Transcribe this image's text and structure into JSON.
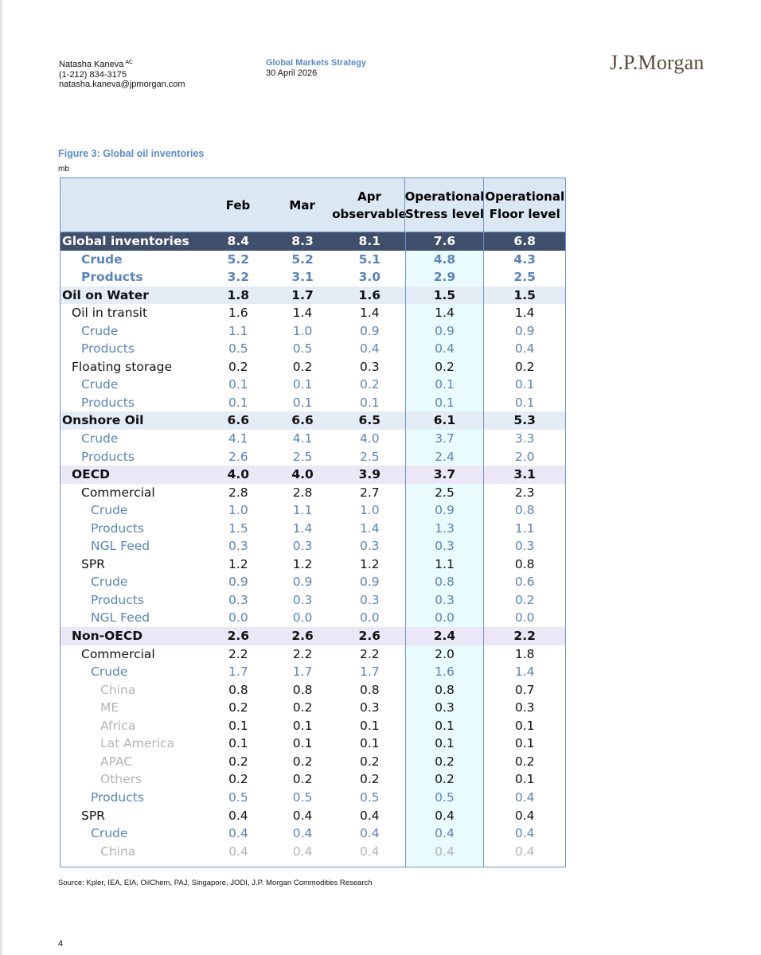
{
  "header": {
    "author_name": "Natasha Kaneva",
    "author_sup": "AC",
    "author_phone": "(1-212) 834-3175",
    "author_email": "natasha.kaneva@jpmorgan.com",
    "strategy_title": "Global Markets Strategy",
    "strategy_date": "30 April 2026",
    "logo_text": "J.P.Morgan"
  },
  "figure": {
    "title": "Figure 3: Global oil inventories",
    "unit": "mb"
  },
  "table": {
    "columns": [
      {
        "line1": "",
        "line2": ""
      },
      {
        "line1": "Feb",
        "line2": ""
      },
      {
        "line1": "Mar",
        "line2": ""
      },
      {
        "line1": "Apr",
        "line2": "observable"
      },
      {
        "line1": "Operational",
        "line2": "Stress level"
      },
      {
        "line1": "Operational",
        "line2": "Floor level"
      }
    ],
    "rows": [
      {
        "label": "Global inventories",
        "values": [
          "8.4",
          "8.3",
          "8.1",
          "7.6",
          "6.8"
        ],
        "indent": 0,
        "tone": "white",
        "bold": true,
        "shade": "global"
      },
      {
        "label": "Crude",
        "values": [
          "5.2",
          "5.2",
          "5.1",
          "4.8",
          "4.3"
        ],
        "indent": 2,
        "tone": "blue",
        "bold": true,
        "shade": ""
      },
      {
        "label": "Products",
        "values": [
          "3.2",
          "3.1",
          "3.0",
          "2.9",
          "2.5"
        ],
        "indent": 2,
        "tone": "blue",
        "bold": true,
        "shade": ""
      },
      {
        "label": "Oil on Water",
        "values": [
          "1.8",
          "1.7",
          "1.6",
          "1.5",
          "1.5"
        ],
        "indent": 0,
        "tone": "black",
        "bold": true,
        "shade": "blue"
      },
      {
        "label": "Oil in transit",
        "values": [
          "1.6",
          "1.4",
          "1.4",
          "1.4",
          "1.4"
        ],
        "indent": 1,
        "tone": "black",
        "bold": false,
        "shade": ""
      },
      {
        "label": "Crude",
        "values": [
          "1.1",
          "1.0",
          "0.9",
          "0.9",
          "0.9"
        ],
        "indent": 2,
        "tone": "blue",
        "bold": false,
        "shade": ""
      },
      {
        "label": "Products",
        "values": [
          "0.5",
          "0.5",
          "0.4",
          "0.4",
          "0.4"
        ],
        "indent": 2,
        "tone": "blue",
        "bold": false,
        "shade": ""
      },
      {
        "label": "Floating storage",
        "values": [
          "0.2",
          "0.2",
          "0.3",
          "0.2",
          "0.2"
        ],
        "indent": 1,
        "tone": "black",
        "bold": false,
        "shade": ""
      },
      {
        "label": "Crude",
        "values": [
          "0.1",
          "0.1",
          "0.2",
          "0.1",
          "0.1"
        ],
        "indent": 2,
        "tone": "blue",
        "bold": false,
        "shade": ""
      },
      {
        "label": "Products",
        "values": [
          "0.1",
          "0.1",
          "0.1",
          "0.1",
          "0.1"
        ],
        "indent": 2,
        "tone": "blue",
        "bold": false,
        "shade": ""
      },
      {
        "label": "Onshore Oil",
        "values": [
          "6.6",
          "6.6",
          "6.5",
          "6.1",
          "5.3"
        ],
        "indent": 0,
        "tone": "black",
        "bold": true,
        "shade": "blue"
      },
      {
        "label": "Crude",
        "values": [
          "4.1",
          "4.1",
          "4.0",
          "3.7",
          "3.3"
        ],
        "indent": 2,
        "tone": "blue",
        "bold": false,
        "shade": ""
      },
      {
        "label": "Products",
        "values": [
          "2.6",
          "2.5",
          "2.5",
          "2.4",
          "2.0"
        ],
        "indent": 2,
        "tone": "blue",
        "bold": false,
        "shade": ""
      },
      {
        "label": "OECD",
        "values": [
          "4.0",
          "4.0",
          "3.9",
          "3.7",
          "3.1"
        ],
        "indent": 1,
        "tone": "black",
        "bold": true,
        "shade": "lav"
      },
      {
        "label": "Commercial",
        "values": [
          "2.8",
          "2.8",
          "2.7",
          "2.5",
          "2.3"
        ],
        "indent": 2,
        "tone": "black",
        "bold": false,
        "shade": ""
      },
      {
        "label": "Crude",
        "values": [
          "1.0",
          "1.1",
          "1.0",
          "0.9",
          "0.8"
        ],
        "indent": 3,
        "tone": "blue",
        "bold": false,
        "shade": ""
      },
      {
        "label": "Products",
        "values": [
          "1.5",
          "1.4",
          "1.4",
          "1.3",
          "1.1"
        ],
        "indent": 3,
        "tone": "blue",
        "bold": false,
        "shade": ""
      },
      {
        "label": "NGL Feed",
        "values": [
          "0.3",
          "0.3",
          "0.3",
          "0.3",
          "0.3"
        ],
        "indent": 3,
        "tone": "blue",
        "bold": false,
        "shade": ""
      },
      {
        "label": "SPR",
        "values": [
          "1.2",
          "1.2",
          "1.2",
          "1.1",
          "0.8"
        ],
        "indent": 2,
        "tone": "black",
        "bold": false,
        "shade": ""
      },
      {
        "label": "Crude",
        "values": [
          "0.9",
          "0.9",
          "0.9",
          "0.8",
          "0.6"
        ],
        "indent": 3,
        "tone": "blue",
        "bold": false,
        "shade": ""
      },
      {
        "label": "Products",
        "values": [
          "0.3",
          "0.3",
          "0.3",
          "0.3",
          "0.2"
        ],
        "indent": 3,
        "tone": "blue",
        "bold": false,
        "shade": ""
      },
      {
        "label": "NGL Feed",
        "values": [
          "0.0",
          "0.0",
          "0.0",
          "0.0",
          "0.0"
        ],
        "indent": 3,
        "tone": "blue",
        "bold": false,
        "shade": ""
      },
      {
        "label": "Non-OECD",
        "values": [
          "2.6",
          "2.6",
          "2.6",
          "2.4",
          "2.2"
        ],
        "indent": 1,
        "tone": "black",
        "bold": true,
        "shade": "lav"
      },
      {
        "label": "Commercial",
        "values": [
          "2.2",
          "2.2",
          "2.2",
          "2.0",
          "1.8"
        ],
        "indent": 2,
        "tone": "black",
        "bold": false,
        "shade": ""
      },
      {
        "label": "Crude",
        "values": [
          "1.7",
          "1.7",
          "1.7",
          "1.6",
          "1.4"
        ],
        "indent": 3,
        "tone": "blue",
        "bold": false,
        "shade": ""
      },
      {
        "label": "China",
        "values": [
          "0.8",
          "0.8",
          "0.8",
          "0.8",
          "0.7"
        ],
        "indent": 4,
        "tone": "gray",
        "numtone": "black",
        "bold": false,
        "shade": ""
      },
      {
        "label": "ME",
        "values": [
          "0.2",
          "0.2",
          "0.3",
          "0.3",
          "0.3"
        ],
        "indent": 4,
        "tone": "gray",
        "numtone": "black",
        "bold": false,
        "shade": ""
      },
      {
        "label": "Africa",
        "values": [
          "0.1",
          "0.1",
          "0.1",
          "0.1",
          "0.1"
        ],
        "indent": 4,
        "tone": "gray",
        "numtone": "black",
        "bold": false,
        "shade": ""
      },
      {
        "label": "Lat America",
        "values": [
          "0.1",
          "0.1",
          "0.1",
          "0.1",
          "0.1"
        ],
        "indent": 4,
        "tone": "gray",
        "numtone": "black",
        "bold": false,
        "shade": ""
      },
      {
        "label": "APAC",
        "values": [
          "0.2",
          "0.2",
          "0.2",
          "0.2",
          "0.2"
        ],
        "indent": 4,
        "tone": "gray",
        "numtone": "black",
        "bold": false,
        "shade": ""
      },
      {
        "label": "Others",
        "values": [
          "0.2",
          "0.2",
          "0.2",
          "0.2",
          "0.1"
        ],
        "indent": 4,
        "tone": "gray",
        "numtone": "black",
        "bold": false,
        "shade": ""
      },
      {
        "label": "Products",
        "values": [
          "0.5",
          "0.5",
          "0.5",
          "0.5",
          "0.4"
        ],
        "indent": 3,
        "tone": "blue",
        "bold": false,
        "shade": ""
      },
      {
        "label": "SPR",
        "values": [
          "0.4",
          "0.4",
          "0.4",
          "0.4",
          "0.4"
        ],
        "indent": 2,
        "tone": "black",
        "bold": false,
        "shade": ""
      },
      {
        "label": "Crude",
        "values": [
          "0.4",
          "0.4",
          "0.4",
          "0.4",
          "0.4"
        ],
        "indent": 3,
        "tone": "blue",
        "bold": false,
        "shade": ""
      },
      {
        "label": "China",
        "values": [
          "0.4",
          "0.4",
          "0.4",
          "0.4",
          "0.4"
        ],
        "indent": 4,
        "tone": "gray",
        "bold": false,
        "shade": ""
      }
    ]
  },
  "source": "Source: Kpler, IEA, EIA, OilChem, PAJ, Singapore, JODI, J.P. Morgan Commodities Research",
  "page_number": "4",
  "colors": {
    "accent_blue": "#5b8bc8",
    "table_border": "#6e95c6",
    "header_fill": "#dbe7f3",
    "global_row_fill": "#3f4f6c",
    "stress_column_fill": "#e9fbfd",
    "section_fill_blue": "#e4ecf5",
    "section_fill_lavender": "#ebe7f7"
  }
}
